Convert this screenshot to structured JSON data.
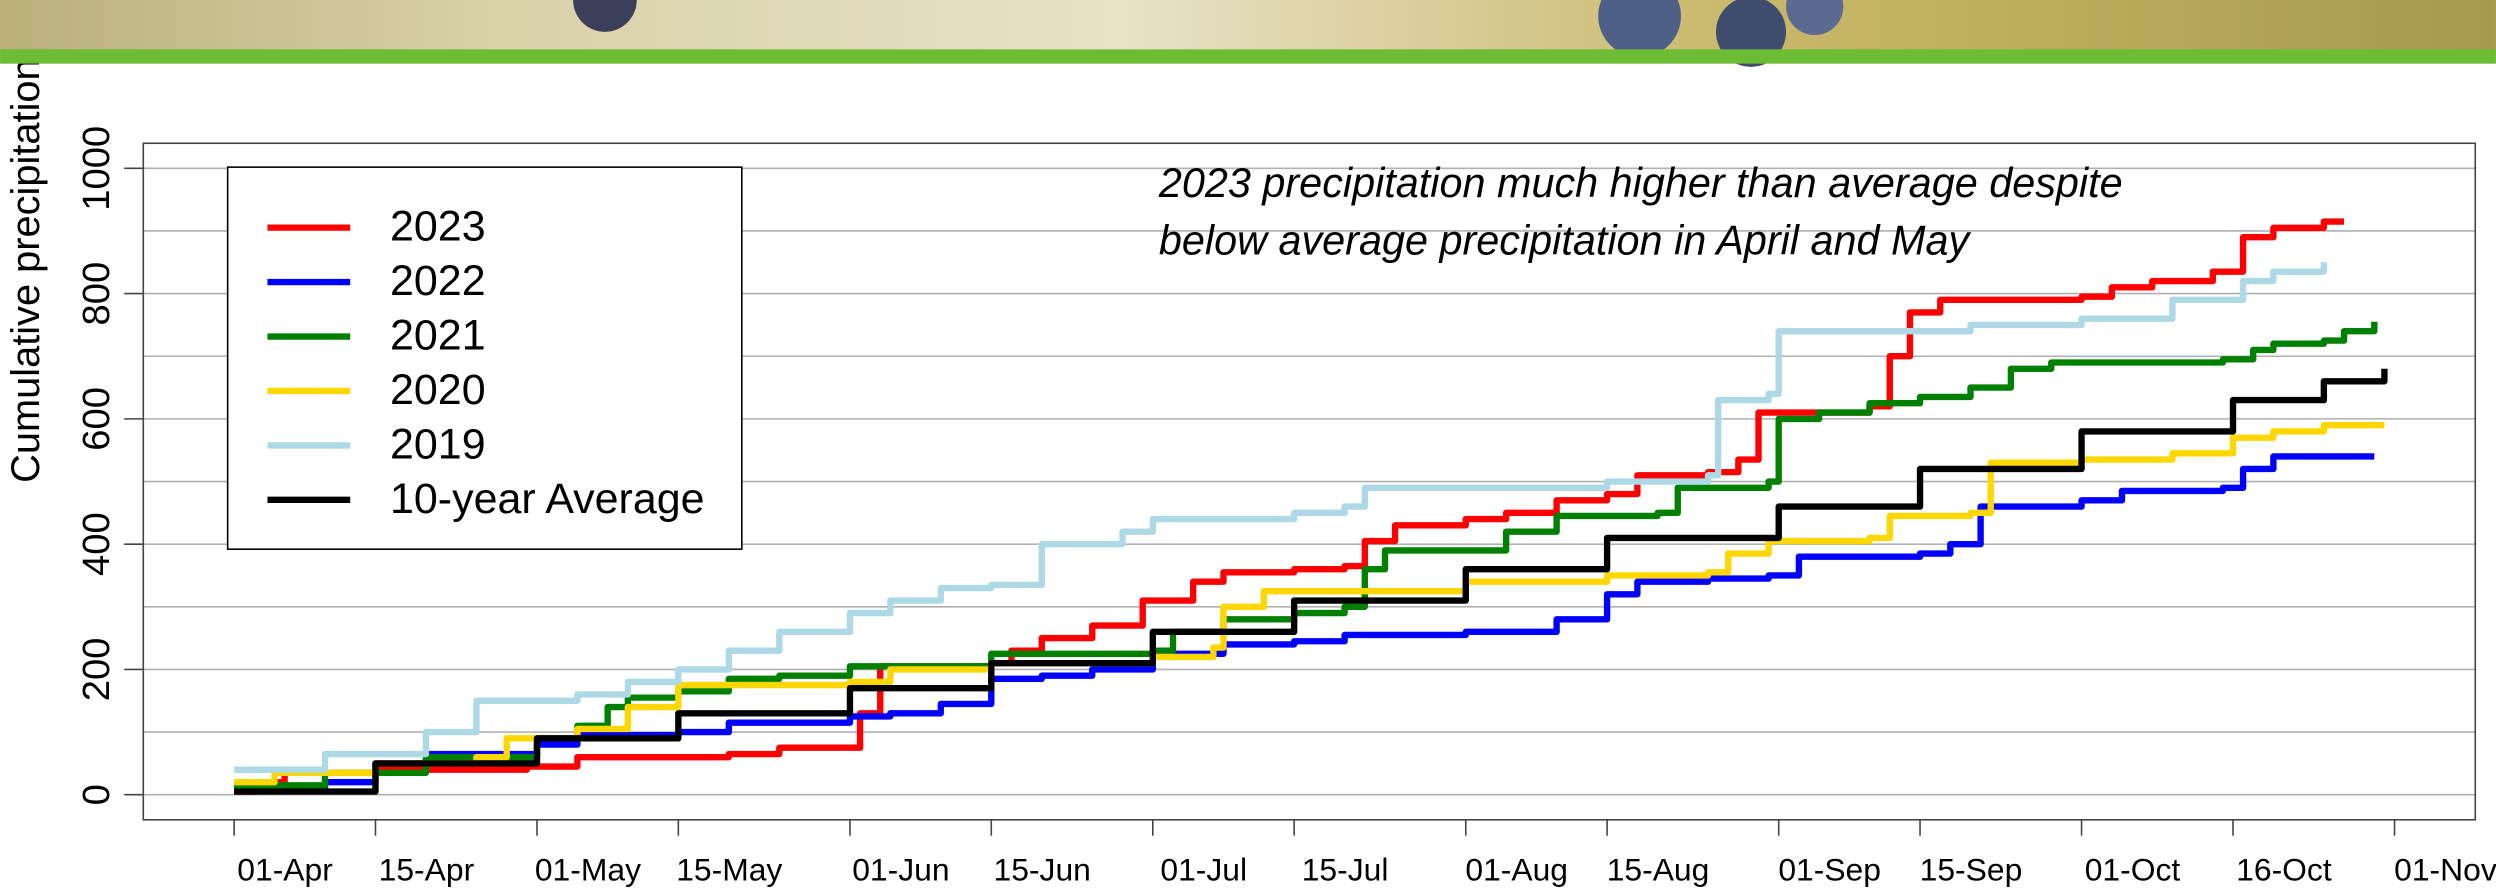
{
  "chart_data": {
    "type": "line",
    "y_label": "Cumulative precipitation",
    "annotation": [
      "2023 precipitation much higher than average despite",
      "below average precipitation in April and May"
    ],
    "xlim": [
      "23-Mar",
      "09-Nov"
    ],
    "xticks": [
      "01-Apr",
      "15-Apr",
      "01-May",
      "15-May",
      "01-Jun",
      "15-Jun",
      "01-Jul",
      "15-Jul",
      "01-Aug",
      "15-Aug",
      "01-Sep",
      "15-Sep",
      "01-Oct",
      "16-Oct",
      "01-Nov"
    ],
    "ylim": [
      -40,
      1040
    ],
    "yticks": [
      0,
      200,
      400,
      600,
      800,
      1000
    ],
    "ygrid": [
      0,
      100,
      200,
      300,
      400,
      500,
      600,
      700,
      800,
      900,
      1000
    ],
    "grid": true,
    "legend": "top-left",
    "series": [
      {
        "name": "2023",
        "color": "#ff0000",
        "x": [
          "01-Apr",
          "03-Apr",
          "06-Apr",
          "15-Apr",
          "30-Apr",
          "05-May",
          "20-May",
          "25-May",
          "31-May",
          "02-Jun",
          "04-Jun",
          "15-Jun",
          "17-Jun",
          "20-Jun",
          "25-Jun",
          "30-Jun",
          "05-Jul",
          "08-Jul",
          "15-Jul",
          "20-Jul",
          "22-Jul",
          "25-Jul",
          "01-Aug",
          "05-Aug",
          "10-Aug",
          "15-Aug",
          "18-Aug",
          "25-Aug",
          "28-Aug",
          "30-Aug",
          "08-Sep",
          "10-Sep",
          "12-Sep",
          "14-Sep",
          "17-Sep",
          "01-Oct",
          "04-Oct",
          "08-Oct",
          "14-Oct",
          "17-Oct",
          "20-Oct",
          "25-Oct",
          "27-Oct"
        ],
        "values": [
          5,
          20,
          35,
          40,
          45,
          60,
          65,
          75,
          75,
          130,
          205,
          210,
          230,
          250,
          270,
          310,
          340,
          355,
          360,
          365,
          405,
          430,
          440,
          450,
          470,
          480,
          510,
          515,
          535,
          610,
          610,
          620,
          700,
          770,
          790,
          795,
          810,
          820,
          835,
          890,
          905,
          915,
          915
        ]
      },
      {
        "name": "2022",
        "color": "#0000ff",
        "x": [
          "01-Apr",
          "10-Apr",
          "15-Apr",
          "20-Apr",
          "01-May",
          "05-May",
          "15-May",
          "20-May",
          "01-Jun",
          "05-Jun",
          "10-Jun",
          "15-Jun",
          "20-Jun",
          "25-Jun",
          "01-Jul",
          "08-Jul",
          "15-Jul",
          "20-Jul",
          "01-Aug",
          "08-Aug",
          "10-Aug",
          "15-Aug",
          "18-Aug",
          "25-Aug",
          "31-Aug",
          "03-Sep",
          "15-Sep",
          "18-Sep",
          "21-Sep",
          "01-Oct",
          "05-Oct",
          "15-Oct",
          "17-Oct",
          "20-Oct",
          "30-Oct"
        ],
        "values": [
          10,
          20,
          50,
          65,
          80,
          95,
          100,
          115,
          125,
          130,
          145,
          185,
          190,
          200,
          225,
          240,
          245,
          255,
          260,
          260,
          280,
          320,
          340,
          345,
          350,
          380,
          385,
          400,
          460,
          470,
          485,
          490,
          520,
          540,
          540
        ]
      },
      {
        "name": "2021",
        "color": "#008000",
        "x": [
          "01-Apr",
          "10-Apr",
          "20-Apr",
          "01-May",
          "05-May",
          "08-May",
          "10-May",
          "15-May",
          "20-May",
          "25-May",
          "01-Jun",
          "15-Jun",
          "01-Jul",
          "03-Jul",
          "08-Jul",
          "15-Jul",
          "20-Jul",
          "22-Jul",
          "24-Jul",
          "31-Jul",
          "05-Aug",
          "10-Aug",
          "20-Aug",
          "22-Aug",
          "31-Aug",
          "01-Sep",
          "05-Sep",
          "10-Sep",
          "15-Sep",
          "20-Sep",
          "24-Sep",
          "28-Sep",
          "15-Oct",
          "18-Oct",
          "20-Oct",
          "25-Oct",
          "27-Oct",
          "30-Oct"
        ],
        "values": [
          15,
          35,
          60,
          90,
          110,
          140,
          155,
          165,
          185,
          190,
          205,
          225,
          230,
          260,
          280,
          290,
          300,
          360,
          390,
          390,
          420,
          445,
          450,
          490,
          500,
          600,
          610,
          625,
          635,
          650,
          680,
          690,
          695,
          710,
          720,
          725,
          740,
          755
        ]
      },
      {
        "name": "2020",
        "color": "#ffd700",
        "x": [
          "01-Apr",
          "05-Apr",
          "15-Apr",
          "25-Apr",
          "28-Apr",
          "05-May",
          "10-May",
          "15-May",
          "01-Jun",
          "05-Jun",
          "15-Jun",
          "01-Jul",
          "07-Jul",
          "08-Jul",
          "12-Jul",
          "01-Aug",
          "15-Aug",
          "25-Aug",
          "27-Aug",
          "31-Aug",
          "10-Sep",
          "12-Sep",
          "20-Sep",
          "22-Sep",
          "01-Oct",
          "10-Oct",
          "16-Oct",
          "20-Oct",
          "25-Oct",
          "31-Oct"
        ],
        "values": [
          20,
          35,
          50,
          60,
          90,
          105,
          140,
          175,
          180,
          200,
          210,
          220,
          235,
          300,
          325,
          340,
          350,
          355,
          385,
          405,
          410,
          445,
          450,
          530,
          535,
          545,
          570,
          580,
          590,
          590
        ]
      },
      {
        "name": "2019",
        "color": "#add8e6",
        "x": [
          "01-Apr",
          "10-Apr",
          "20-Apr",
          "25-Apr",
          "05-May",
          "10-May",
          "15-May",
          "20-May",
          "25-May",
          "01-Jun",
          "05-Jun",
          "10-Jun",
          "15-Jun",
          "20-Jun",
          "28-Jun",
          "01-Jul",
          "15-Jul",
          "20-Jul",
          "22-Jul",
          "15-Aug",
          "25-Aug",
          "26-Aug",
          "31-Aug",
          "01-Sep",
          "20-Sep",
          "01-Oct",
          "10-Oct",
          "17-Oct",
          "20-Oct",
          "25-Oct"
        ],
        "values": [
          40,
          65,
          100,
          150,
          160,
          180,
          200,
          230,
          260,
          290,
          310,
          330,
          335,
          400,
          420,
          440,
          450,
          460,
          490,
          500,
          510,
          630,
          640,
          740,
          750,
          760,
          790,
          820,
          835,
          850
        ]
      },
      {
        "name": "10-year Average",
        "color": "#000000",
        "x": [
          "01-Apr",
          "15-Apr",
          "01-May",
          "15-May",
          "01-Jun",
          "15-Jun",
          "01-Jul",
          "15-Jul",
          "01-Aug",
          "15-Aug",
          "01-Sep",
          "15-Sep",
          "01-Oct",
          "16-Oct",
          "25-Oct",
          "31-Oct"
        ],
        "values": [
          5,
          50,
          90,
          130,
          170,
          210,
          260,
          310,
          360,
          410,
          460,
          520,
          580,
          630,
          660,
          680
        ]
      }
    ]
  }
}
